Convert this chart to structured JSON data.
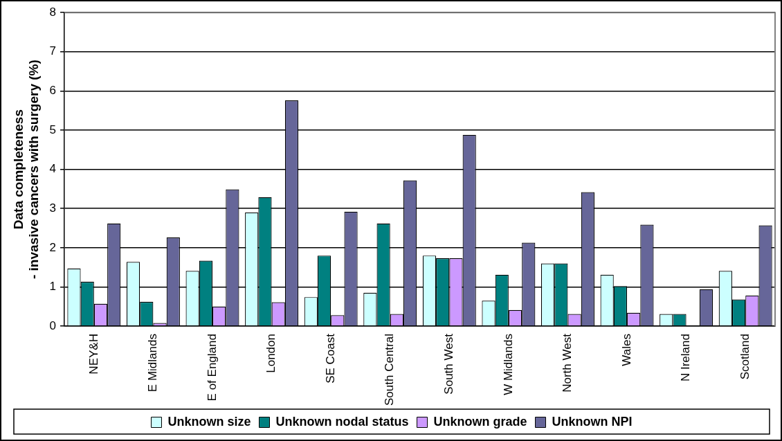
{
  "chart_data": {
    "type": "bar",
    "ylabel": "Data completeness\n- invasive cancers with surgery (%)",
    "categories": [
      "NEY&H",
      "E Midlands",
      "E of England",
      "London",
      "SE Coast",
      "South Central",
      "South West",
      "W Midlands",
      "North West",
      "Wales",
      "N Ireland",
      "Scotland"
    ],
    "series": [
      {
        "name": "Unknown size",
        "color": "#ccffff",
        "values": [
          1.47,
          1.64,
          1.41,
          2.9,
          0.74,
          0.85,
          1.8,
          0.65,
          1.6,
          1.31,
          0.31,
          1.41
        ]
      },
      {
        "name": "Unknown nodal status",
        "color": "#008080",
        "values": [
          1.13,
          0.62,
          1.67,
          3.29,
          1.8,
          2.62,
          1.73,
          1.31,
          1.6,
          1.02,
          0.31,
          0.68
        ]
      },
      {
        "name": "Unknown grade",
        "color": "#cc99ff",
        "values": [
          0.57,
          0.08,
          0.5,
          0.61,
          0.28,
          0.31,
          1.73,
          0.41,
          0.31,
          0.34,
          null,
          0.78
        ]
      },
      {
        "name": "Unknown NPI",
        "color": "#666699",
        "values": [
          2.62,
          2.26,
          3.49,
          5.76,
          2.92,
          3.72,
          4.88,
          2.13,
          3.42,
          2.59,
          0.94,
          2.57
        ]
      }
    ],
    "ylim": [
      0,
      8
    ],
    "yticks": [
      0,
      1,
      2,
      3,
      4,
      5,
      6,
      7,
      8
    ],
    "grid": "y",
    "legend": "bottom"
  }
}
